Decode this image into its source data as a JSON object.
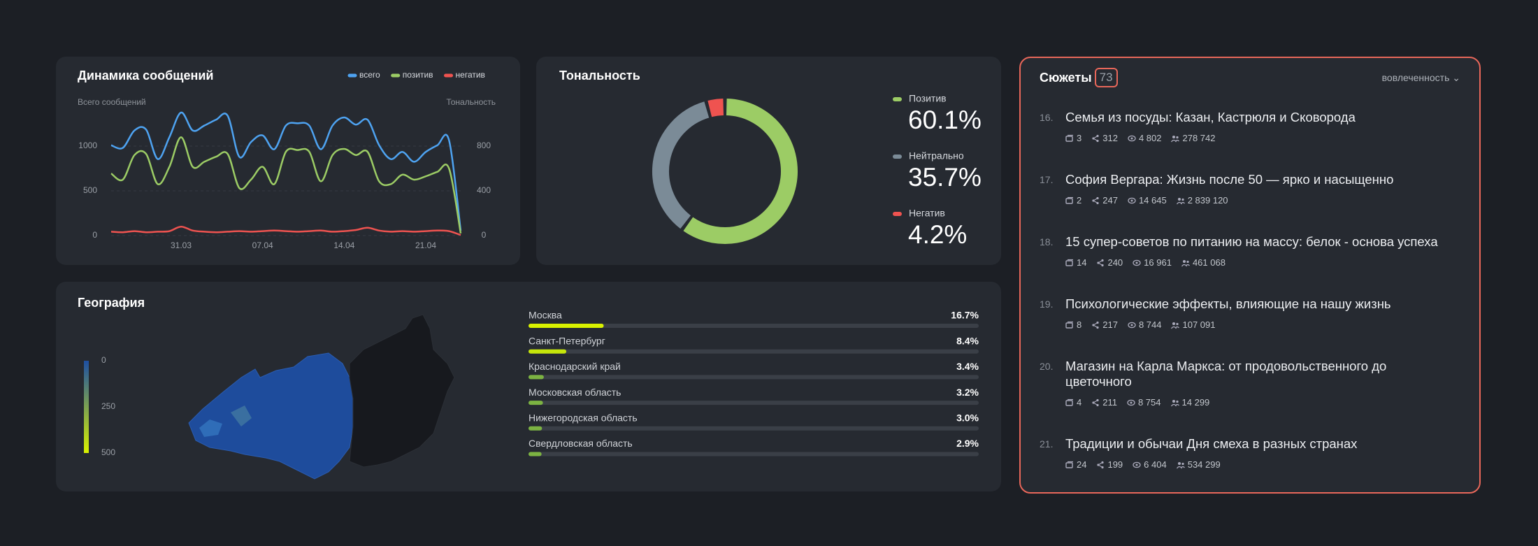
{
  "chart_data": [
    {
      "type": "line",
      "title": "Динамика сообщений",
      "y_label": "Всего сообщений",
      "y2_label": "Тональность",
      "categories": [
        null,
        null,
        null,
        null,
        null,
        null,
        "31.03",
        null,
        null,
        null,
        null,
        null,
        null,
        "07.04",
        null,
        null,
        null,
        null,
        null,
        null,
        "14.04",
        null,
        null,
        null,
        null,
        null,
        null,
        "21.04",
        null,
        null,
        null
      ],
      "series": [
        {
          "name": "всего",
          "color": "#4ea3f1",
          "values": [
            1010,
            980,
            1175,
            1185,
            855,
            1100,
            1375,
            1175,
            1230,
            1295,
            1340,
            880,
            1045,
            1120,
            965,
            1230,
            1255,
            1230,
            965,
            1230,
            1320,
            1240,
            1295,
            1010,
            855,
            935,
            825,
            935,
            1010,
            1065,
            55
          ]
        },
        {
          "name": "позитив",
          "color": "#9ccc65",
          "axis": "y2",
          "values": [
            555,
            500,
            720,
            730,
            460,
            615,
            880,
            615,
            660,
            705,
            730,
            425,
            500,
            615,
            460,
            750,
            765,
            750,
            485,
            720,
            775,
            720,
            750,
            485,
            460,
            545,
            500,
            530,
            570,
            600,
            20
          ]
        },
        {
          "name": "негатив",
          "color": "#ef5350",
          "axis": "y2",
          "values": [
            35,
            30,
            40,
            30,
            35,
            40,
            80,
            45,
            35,
            30,
            35,
            40,
            35,
            40,
            45,
            40,
            35,
            40,
            45,
            35,
            40,
            50,
            70,
            45,
            35,
            40,
            35,
            40,
            45,
            40,
            5
          ]
        }
      ],
      "ylim": [
        0,
        1000
      ],
      "yticks": [
        0,
        500,
        1000
      ],
      "y2lim": [
        0,
        800
      ],
      "y2ticks": [
        0,
        400,
        800
      ],
      "grid": true
    },
    {
      "type": "donut",
      "title": "Тональность",
      "categories": [
        "Позитив",
        "Нейтрально",
        "Негатив"
      ],
      "values": [
        60.1,
        35.7,
        4.2
      ],
      "value_labels": [
        "60.1%",
        "35.7%",
        "4.2%"
      ],
      "colors": [
        "#9ccc65",
        "#7b8b97",
        "#ef5350"
      ]
    },
    {
      "type": "hbar",
      "title": "География",
      "categories": [
        "Москва",
        "Санкт-Петербург",
        "Краснодарский край",
        "Московская область",
        "Нижегородская область",
        "Свердловская область"
      ],
      "values": [
        16.7,
        8.4,
        3.4,
        3.2,
        3.0,
        2.9
      ],
      "value_labels": [
        "16.7%",
        "8.4%",
        "3.4%",
        "3.2%",
        "3.0%",
        "2.9%"
      ],
      "colors": [
        "#d9f200",
        "#c6e60a",
        "#7cb342",
        "#7cb342",
        "#7cb342",
        "#7cb342"
      ],
      "xlim": [
        0,
        100
      ],
      "colorbar": {
        "lim": [
          0,
          500
        ],
        "ticks": [
          0,
          250,
          500
        ],
        "colors": [
          "#1d4fa3",
          "#d9f200"
        ]
      }
    }
  ],
  "stories": {
    "title": "Сюжеты",
    "count": "73",
    "sort": "вовлеченность",
    "items": [
      {
        "number": "16.",
        "title": "Семья из посуды: Казан, Кастрюля и Сковорода",
        "stats": [
          "3",
          "312",
          "4 802",
          "278 742"
        ]
      },
      {
        "number": "17.",
        "title": "София Вергара: Жизнь после 50 — ярко и насыщенно",
        "stats": [
          "2",
          "247",
          "14 645",
          "2 839 120"
        ]
      },
      {
        "number": "18.",
        "title": "15 супер-советов по питанию на массу: белок - основа успеха",
        "stats": [
          "14",
          "240",
          "16 961",
          "461 068"
        ]
      },
      {
        "number": "19.",
        "title": "Психологические эффекты, влияющие на нашу жизнь",
        "stats": [
          "8",
          "217",
          "8 744",
          "107 091"
        ]
      },
      {
        "number": "20.",
        "title": "Магазин на Карла Маркса: от продовольственного до цветочного",
        "stats": [
          "4",
          "211",
          "8 754",
          "14 299"
        ]
      },
      {
        "number": "21.",
        "title": "Традиции и обычаи Дня смеха в разных странах",
        "stats": [
          "24",
          "199",
          "6 404",
          "534 299"
        ]
      }
    ]
  }
}
